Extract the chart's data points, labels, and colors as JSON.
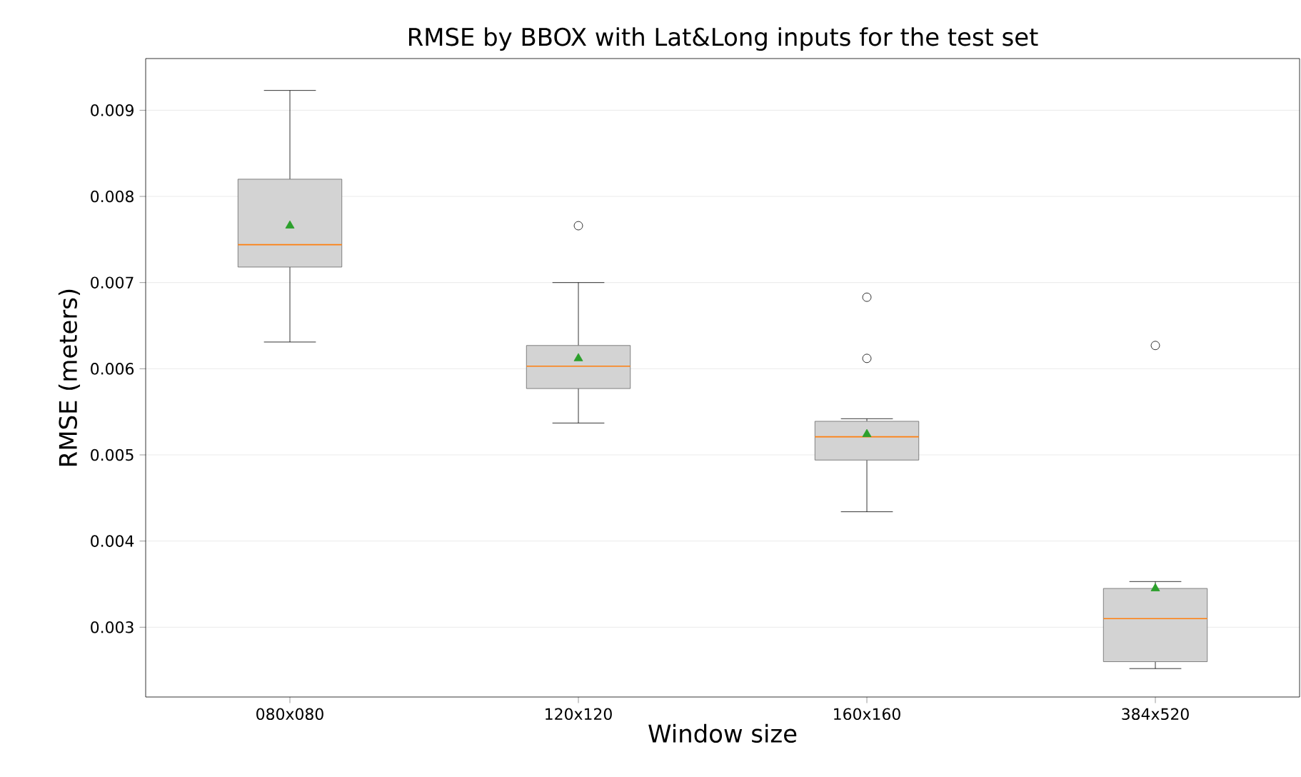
{
  "chart_data": {
    "type": "box",
    "title": "RMSE by BBOX with Lat&Long inputs for the test set",
    "xlabel": "Window size",
    "ylabel": "RMSE (meters)",
    "categories": [
      "080x080",
      "120x120",
      "160x160",
      "384x520"
    ],
    "ylim": [
      0.00219,
      0.0096
    ],
    "yticks": [
      0.003,
      0.004,
      0.005,
      0.006,
      0.007,
      0.008,
      0.009
    ],
    "grid": "y",
    "series": [
      {
        "color": "#d3d3d3",
        "boxes": [
          {
            "low": 0.00631,
            "q1": 0.00718,
            "median": 0.00744,
            "q3": 0.0082,
            "high": 0.00923,
            "mean": 0.00766
          },
          {
            "low": 0.00537,
            "q1": 0.00577,
            "median": 0.00603,
            "q3": 0.00627,
            "high": 0.007,
            "mean": 0.00612,
            "outliers": [
              0.00766
            ]
          },
          {
            "low": 0.00434,
            "q1": 0.00494,
            "median": 0.00521,
            "q3": 0.00539,
            "high": 0.00542,
            "mean": 0.00524,
            "outliers": [
              0.00683,
              0.00612
            ]
          },
          {
            "low": 0.00252,
            "q1": 0.0026,
            "median": 0.0031,
            "q3": 0.00345,
            "high": 0.00353,
            "mean": 0.00345,
            "outliers": [
              0.00627
            ]
          }
        ]
      }
    ]
  }
}
